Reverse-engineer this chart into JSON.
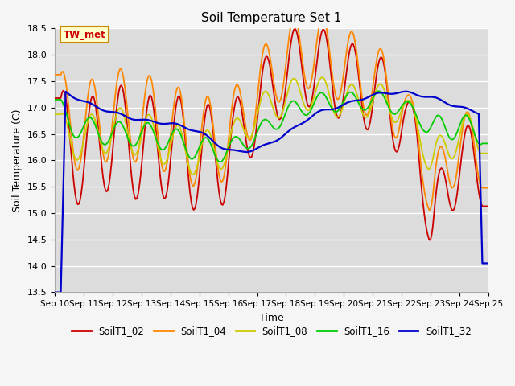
{
  "title": "Soil Temperature Set 1",
  "xlabel": "Time",
  "ylabel": "Soil Temperature (C)",
  "ylim": [
    13.5,
    18.5
  ],
  "series_colors": {
    "SoilT1_02": "#cc0000",
    "SoilT1_04": "#ff8800",
    "SoilT1_08": "#cccc00",
    "SoilT1_16": "#00cc00",
    "SoilT1_32": "#0000cc"
  },
  "series_order": [
    "SoilT1_02",
    "SoilT1_04",
    "SoilT1_08",
    "SoilT1_16",
    "SoilT1_32"
  ],
  "x_tick_labels": [
    "Sep 10",
    "Sep 11",
    "Sep 12",
    "Sep 13",
    "Sep 14",
    "Sep 15",
    "Sep 16",
    "Sep 17",
    "Sep 18",
    "Sep 19",
    "Sep 20",
    "Sep 21",
    "Sep 22",
    "Sep 23",
    "Sep 24",
    "Sep 25"
  ],
  "bg_color": "#dcdcdc",
  "legend_label": "TW_met",
  "legend_box_color": "#ffffcc",
  "legend_box_edge": "#cc8800"
}
